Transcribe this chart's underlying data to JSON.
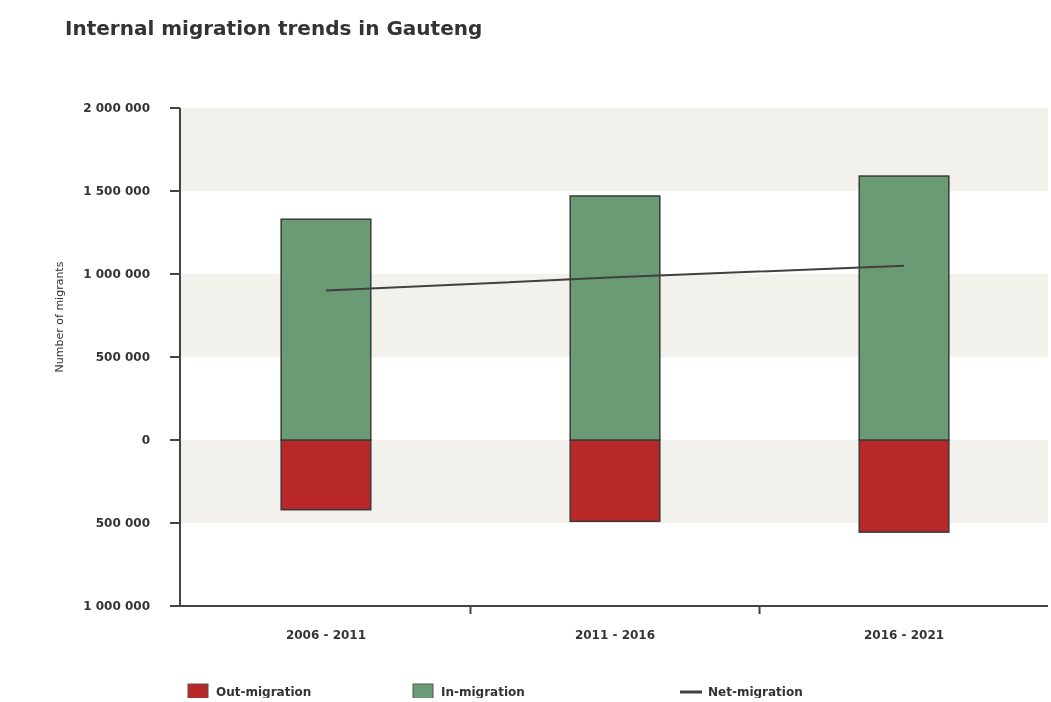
{
  "chart_data": {
    "type": "bar",
    "title": "Internal migration trends in Gauteng",
    "ylabel": "Number of migrants",
    "categories": [
      "2006 - 2011",
      "2011 - 2016",
      "2016 - 2021"
    ],
    "series": [
      {
        "name": "Out-migration",
        "color": "#b82828",
        "values": [
          -420000,
          -490000,
          -555000
        ]
      },
      {
        "name": "In-migration",
        "color": "#6b9b74",
        "values": [
          1330000,
          1470000,
          1590000
        ]
      },
      {
        "name": "Net-migration",
        "type": "line",
        "color": "#404040",
        "values": [
          900000,
          980000,
          1050000
        ]
      }
    ],
    "stacked": true,
    "ylim": [
      -1000000,
      2000000
    ],
    "yticks": [
      {
        "value": -1000000,
        "label": "1 000 000"
      },
      {
        "value": -500000,
        "label": "500 000"
      },
      {
        "value": 0,
        "label": "0"
      },
      {
        "value": 500000,
        "label": "500 000"
      },
      {
        "value": 1000000,
        "label": "1 000 000"
      },
      {
        "value": 1500000,
        "label": "1 500 000"
      },
      {
        "value": 2000000,
        "label": "2 000 000"
      }
    ],
    "bands": [
      {
        "axis": "y",
        "from": 1500000,
        "to": 2000000,
        "color": "#f3f1ec"
      },
      {
        "axis": "y",
        "from": 500000,
        "to": 1000000,
        "color": "#f3f1ec"
      },
      {
        "axis": "y",
        "from": -500000,
        "to": 0,
        "color": "#f3f1ec"
      }
    ],
    "legend": "bottom",
    "marker": "none"
  }
}
